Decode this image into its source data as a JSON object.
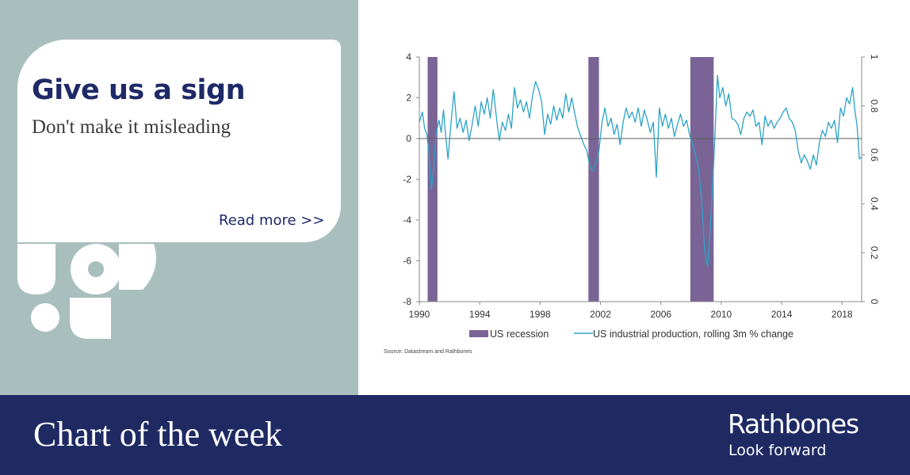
{
  "promo": {
    "headline": "Give us a sign",
    "subheadline": "Don't make it misleading",
    "read_more": "Read more >>"
  },
  "footer": {
    "title": "Chart of the week",
    "brand": "Rathbones",
    "tagline": "Look forward"
  },
  "colors": {
    "navy": "#1f2a63",
    "panel_grey": "#a9bfbd",
    "recession": "#7a6496",
    "line": "#2aa3c6"
  },
  "chart_data": {
    "type": "line",
    "title": "",
    "source": "Source: Datastream and Rathbones",
    "x_range": [
      1990,
      2019.3
    ],
    "x_ticks": [
      1990,
      1994,
      1998,
      2002,
      2006,
      2010,
      2014,
      2018
    ],
    "y_left_range": [
      -8,
      4
    ],
    "y_left_ticks": [
      4,
      2,
      0,
      -2,
      -4,
      -6,
      -8
    ],
    "y_right_range": [
      0,
      1
    ],
    "y_right_ticks": [
      "1",
      "0.8",
      "0.6",
      "0.4",
      "0.2",
      "0"
    ],
    "grid": false,
    "legend_position": "bottom",
    "series": [
      {
        "name": "US recession",
        "type": "bar",
        "axis": "right",
        "periods": [
          {
            "start": 1990.55,
            "end": 1991.2
          },
          {
            "start": 2001.2,
            "end": 2001.9
          },
          {
            "start": 2007.95,
            "end": 2009.5
          }
        ]
      },
      {
        "name": "US industrial production, rolling 3m % change",
        "type": "line",
        "axis": "left",
        "points": [
          [
            1990.0,
            0.8
          ],
          [
            1990.2,
            1.3
          ],
          [
            1990.35,
            0.5
          ],
          [
            1990.5,
            0.2
          ],
          [
            1990.65,
            -0.8
          ],
          [
            1990.8,
            -2.5
          ],
          [
            1990.95,
            -1.5
          ],
          [
            1991.1,
            0.2
          ],
          [
            1991.3,
            0.9
          ],
          [
            1991.45,
            0.3
          ],
          [
            1991.6,
            1.4
          ],
          [
            1991.75,
            0.1
          ],
          [
            1991.9,
            -1.0
          ],
          [
            1992.1,
            0.8
          ],
          [
            1992.3,
            2.3
          ],
          [
            1992.5,
            0.5
          ],
          [
            1992.7,
            1.0
          ],
          [
            1992.9,
            0.3
          ],
          [
            1993.1,
            0.9
          ],
          [
            1993.3,
            -0.1
          ],
          [
            1993.5,
            0.7
          ],
          [
            1993.7,
            1.6
          ],
          [
            1993.9,
            0.6
          ],
          [
            1994.1,
            1.8
          ],
          [
            1994.3,
            1.2
          ],
          [
            1994.5,
            2.0
          ],
          [
            1994.7,
            1.0
          ],
          [
            1994.9,
            2.4
          ],
          [
            1995.1,
            1.1
          ],
          [
            1995.3,
            -0.1
          ],
          [
            1995.5,
            0.8
          ],
          [
            1995.7,
            0.4
          ],
          [
            1995.9,
            1.2
          ],
          [
            1996.1,
            0.5
          ],
          [
            1996.3,
            2.5
          ],
          [
            1996.5,
            1.5
          ],
          [
            1996.7,
            1.9
          ],
          [
            1996.9,
            1.3
          ],
          [
            1997.1,
            1.8
          ],
          [
            1997.3,
            1.0
          ],
          [
            1997.5,
            2.1
          ],
          [
            1997.7,
            2.8
          ],
          [
            1997.9,
            2.4
          ],
          [
            1998.1,
            1.8
          ],
          [
            1998.3,
            0.2
          ],
          [
            1998.5,
            1.2
          ],
          [
            1998.7,
            0.7
          ],
          [
            1998.9,
            1.6
          ],
          [
            1999.1,
            0.9
          ],
          [
            1999.3,
            1.5
          ],
          [
            1999.5,
            1.0
          ],
          [
            1999.7,
            2.2
          ],
          [
            1999.9,
            1.3
          ],
          [
            2000.1,
            2.0
          ],
          [
            2000.3,
            1.2
          ],
          [
            2000.5,
            0.5
          ],
          [
            2000.7,
            0.1
          ],
          [
            2000.9,
            -0.3
          ],
          [
            2001.1,
            -0.6
          ],
          [
            2001.3,
            -1.4
          ],
          [
            2001.5,
            -1.6
          ],
          [
            2001.7,
            -1.2
          ],
          [
            2001.9,
            -0.6
          ],
          [
            2002.1,
            0.8
          ],
          [
            2002.3,
            1.5
          ],
          [
            2002.5,
            0.6
          ],
          [
            2002.7,
            1.0
          ],
          [
            2002.9,
            0.2
          ],
          [
            2003.1,
            0.7
          ],
          [
            2003.3,
            -0.3
          ],
          [
            2003.5,
            0.8
          ],
          [
            2003.7,
            1.5
          ],
          [
            2003.9,
            1.0
          ],
          [
            2004.1,
            1.3
          ],
          [
            2004.3,
            0.8
          ],
          [
            2004.5,
            1.5
          ],
          [
            2004.7,
            0.6
          ],
          [
            2004.9,
            1.4
          ],
          [
            2005.1,
            0.9
          ],
          [
            2005.3,
            0.3
          ],
          [
            2005.5,
            0.8
          ],
          [
            2005.7,
            -1.9
          ],
          [
            2005.9,
            1.5
          ],
          [
            2006.1,
            0.6
          ],
          [
            2006.3,
            1.2
          ],
          [
            2006.5,
            0.5
          ],
          [
            2006.7,
            1.0
          ],
          [
            2006.9,
            0.1
          ],
          [
            2007.1,
            0.7
          ],
          [
            2007.3,
            1.2
          ],
          [
            2007.5,
            0.6
          ],
          [
            2007.7,
            0.9
          ],
          [
            2007.9,
            0.2
          ],
          [
            2008.1,
            -0.3
          ],
          [
            2008.3,
            -0.8
          ],
          [
            2008.5,
            -1.5
          ],
          [
            2008.7,
            -3.0
          ],
          [
            2008.9,
            -5.5
          ],
          [
            2009.1,
            -6.3
          ],
          [
            2009.3,
            -4.0
          ],
          [
            2009.45,
            -2.0
          ],
          [
            2009.6,
            0.5
          ],
          [
            2009.75,
            3.1
          ],
          [
            2009.9,
            2.0
          ],
          [
            2010.1,
            2.5
          ],
          [
            2010.3,
            1.6
          ],
          [
            2010.5,
            2.2
          ],
          [
            2010.7,
            1.0
          ],
          [
            2010.9,
            0.9
          ],
          [
            2011.1,
            0.7
          ],
          [
            2011.3,
            0.2
          ],
          [
            2011.5,
            1.0
          ],
          [
            2011.7,
            1.3
          ],
          [
            2011.9,
            1.1
          ],
          [
            2012.1,
            1.4
          ],
          [
            2012.3,
            0.6
          ],
          [
            2012.5,
            0.8
          ],
          [
            2012.7,
            -0.3
          ],
          [
            2012.9,
            1.1
          ],
          [
            2013.1,
            0.6
          ],
          [
            2013.3,
            0.9
          ],
          [
            2013.5,
            0.5
          ],
          [
            2013.7,
            0.8
          ],
          [
            2013.9,
            1.0
          ],
          [
            2014.1,
            1.3
          ],
          [
            2014.3,
            1.5
          ],
          [
            2014.5,
            1.0
          ],
          [
            2014.7,
            0.8
          ],
          [
            2014.9,
            0.4
          ],
          [
            2015.1,
            -0.6
          ],
          [
            2015.3,
            -1.2
          ],
          [
            2015.5,
            -0.8
          ],
          [
            2015.7,
            -1.1
          ],
          [
            2015.9,
            -1.5
          ],
          [
            2016.1,
            -0.8
          ],
          [
            2016.3,
            -1.3
          ],
          [
            2016.5,
            -0.2
          ],
          [
            2016.7,
            0.4
          ],
          [
            2016.9,
            0.1
          ],
          [
            2017.1,
            0.8
          ],
          [
            2017.3,
            0.5
          ],
          [
            2017.5,
            0.9
          ],
          [
            2017.7,
            -0.2
          ],
          [
            2017.9,
            1.5
          ],
          [
            2018.1,
            1.1
          ],
          [
            2018.3,
            2.0
          ],
          [
            2018.5,
            1.7
          ],
          [
            2018.7,
            2.5
          ],
          [
            2018.85,
            1.4
          ],
          [
            2019.0,
            0.6
          ],
          [
            2019.15,
            -1.0
          ],
          [
            2019.3,
            -0.9
          ]
        ]
      }
    ]
  }
}
